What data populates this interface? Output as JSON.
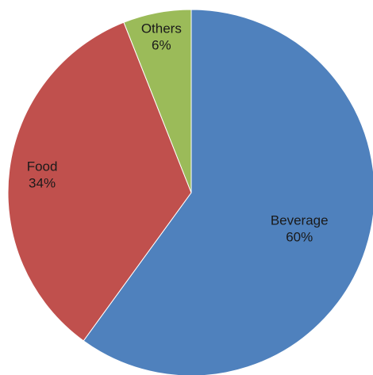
{
  "chart_data": {
    "type": "pie",
    "start_angle_deg": 0,
    "direction": "clockwise",
    "slices": [
      {
        "category": "Beverage",
        "value": 60,
        "label_pct": "60%",
        "color": "#4F81BD"
      },
      {
        "category": "Food",
        "value": 34,
        "label_pct": "34%",
        "color": "#C0504D"
      },
      {
        "category": "Others",
        "value": 6,
        "label_pct": "6%",
        "color": "#9BBB59"
      }
    ]
  }
}
